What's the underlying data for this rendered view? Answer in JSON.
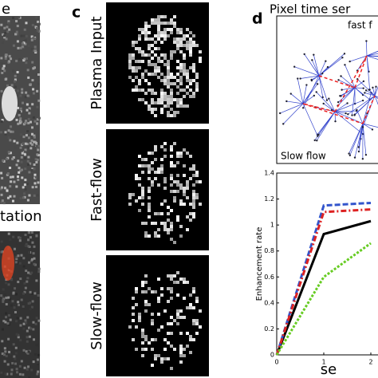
{
  "panel_e": {
    "letter": "e",
    "caption": "tation"
  },
  "panel_c": {
    "letter": "c",
    "rows": [
      "Plasma Input",
      "Fast-flow",
      "Slow-flow"
    ]
  },
  "panel_d": {
    "letter": "d",
    "title": "Pixel time ser",
    "fast_label": "fast f",
    "slow_label": "Slow flow"
  },
  "chart_data": {
    "type": "line",
    "x_label": "se",
    "y_label": "Enhancement rate",
    "x": [
      0,
      1,
      2
    ],
    "xlim": [
      0,
      2
    ],
    "xticks": [
      0,
      1,
      2
    ],
    "ylim": [
      0,
      1.4
    ],
    "yticks": [
      0,
      0.2,
      0.4,
      0.6,
      0.8,
      1,
      1.2,
      1.4
    ],
    "series": [
      {
        "color": "#000000",
        "dash": "solid",
        "values": [
          0,
          0.93,
          1.03
        ]
      },
      {
        "color": "#3355cc",
        "dash": "dashed",
        "values": [
          0,
          1.15,
          1.17
        ]
      },
      {
        "color": "#dd2222",
        "dash": "dashdot",
        "values": [
          0,
          1.1,
          1.12
        ]
      },
      {
        "color": "#66cc22",
        "dash": "dotted",
        "values": [
          0,
          0.6,
          0.86
        ]
      }
    ]
  }
}
